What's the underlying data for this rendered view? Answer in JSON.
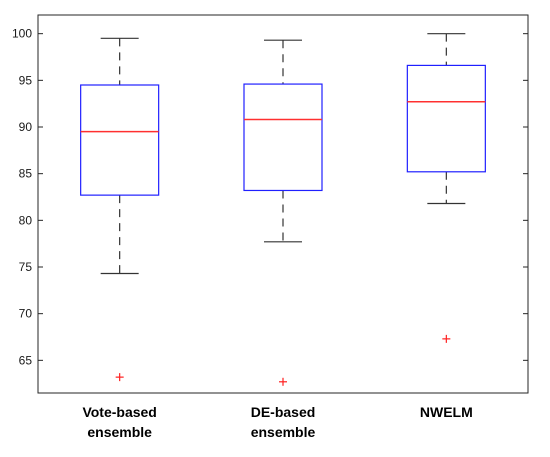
{
  "chart_data": {
    "type": "box",
    "categories": [
      "Vote-based ensemble",
      "DE-based ensemble",
      "NWELM"
    ],
    "category_label_lines": [
      [
        "Vote-based",
        "ensemble"
      ],
      [
        "DE-based",
        "ensemble"
      ],
      [
        "NWELM"
      ]
    ],
    "boxes": [
      {
        "name": "Vote-based ensemble",
        "whisker_low": 74.3,
        "q1": 82.7,
        "median": 89.5,
        "q3": 94.5,
        "whisker_high": 99.5,
        "outliers": [
          63.2
        ]
      },
      {
        "name": "DE-based ensemble",
        "whisker_low": 77.7,
        "q1": 83.2,
        "median": 90.8,
        "q3": 94.6,
        "whisker_high": 99.3,
        "outliers": [
          62.7
        ]
      },
      {
        "name": "NWELM",
        "whisker_low": 81.8,
        "q1": 85.2,
        "median": 92.7,
        "q3": 96.6,
        "whisker_high": 100.0,
        "outliers": [
          67.3
        ]
      }
    ],
    "ylim": [
      61.5,
      102
    ],
    "yticks": [
      65,
      70,
      75,
      80,
      85,
      90,
      95,
      100
    ],
    "title": "",
    "xlabel": "",
    "ylabel": "",
    "grid": false,
    "colors": {
      "box": "#2020ff",
      "median": "#ff3030",
      "whisker": "#333333",
      "outlier": "#ff2020",
      "axis": "#262626"
    }
  }
}
